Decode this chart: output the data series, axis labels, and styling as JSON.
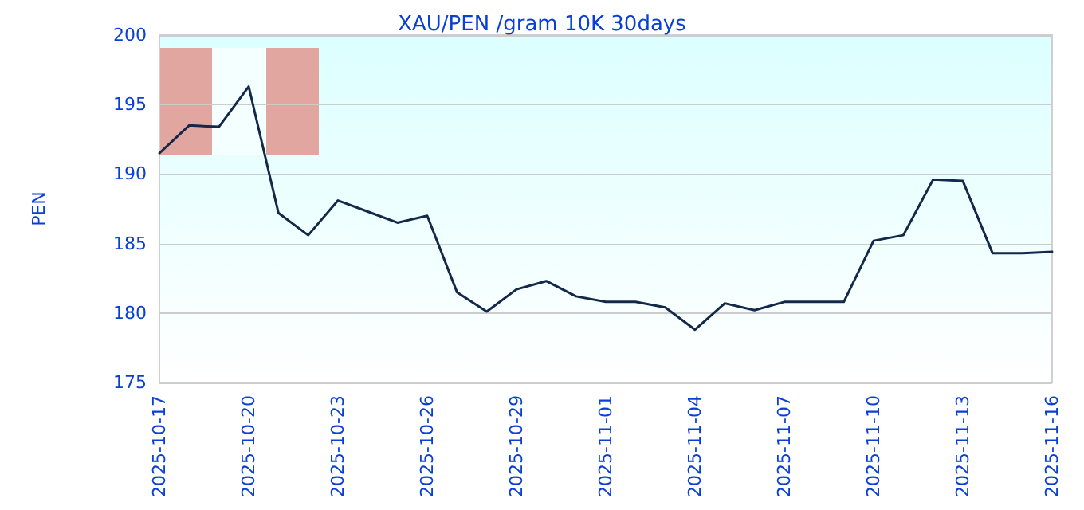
{
  "chart_data": {
    "type": "line",
    "title": "XAU/PEN /gram 10K 30days",
    "ylabel": "PEN",
    "categories": [
      "2025-10-17",
      null,
      null,
      "2025-10-20",
      null,
      null,
      "2025-10-23",
      null,
      null,
      "2025-10-26",
      null,
      null,
      "2025-10-29",
      null,
      null,
      "2025-11-01",
      null,
      null,
      "2025-11-04",
      null,
      null,
      "2025-11-07",
      null,
      null,
      "2025-11-10",
      null,
      null,
      "2025-11-13",
      null,
      null,
      "2025-11-16"
    ],
    "series": [
      {
        "color": "#14284a",
        "values": [
          191.5,
          193.5,
          193.4,
          196.3,
          187.2,
          185.6,
          188.1,
          187.3,
          186.5,
          187.0,
          181.5,
          180.1,
          181.7,
          182.3,
          181.2,
          180.8,
          180.8,
          180.4,
          178.8,
          180.7,
          180.2,
          180.8,
          180.8,
          180.8,
          185.2,
          185.6,
          189.6,
          189.5,
          184.3,
          184.3,
          184.4
        ]
      }
    ],
    "ylim": [
      175,
      200
    ],
    "yticks": [
      175,
      180,
      185,
      190,
      195,
      200
    ],
    "grid": "y",
    "marker": "none",
    "line_style": "solid"
  }
}
